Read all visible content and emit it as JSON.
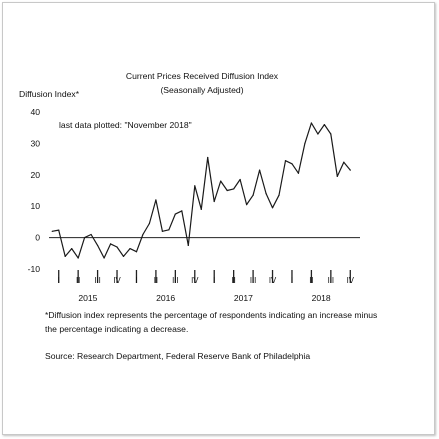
{
  "chart_data": {
    "type": "line",
    "title": "Current Prices Received Diffusion Index",
    "subtitle": "(Seasonally Adjusted)",
    "ylabel": "Diffusion Index*",
    "annotation": "last data plotted: \"November 2018\"",
    "ylim": [
      -10,
      40
    ],
    "yticks": [
      -10,
      0,
      10,
      20,
      30,
      40
    ],
    "grid": false,
    "x_start": "2015-01",
    "quarter_labels": [
      "I",
      "II",
      "III",
      "IV",
      "I",
      "II",
      "III",
      "IV",
      "I",
      "II",
      "III",
      "IV",
      "I",
      "II",
      "III",
      "IV"
    ],
    "year_labels": [
      "2015",
      "2016",
      "2017",
      "2018"
    ],
    "series": [
      {
        "values": [
          2,
          2.4,
          -6,
          -3.5,
          -6.5,
          0,
          1,
          -2.5,
          -6.5,
          -2,
          -3,
          -6,
          -3.5,
          -4.5,
          1,
          4.5,
          12,
          2,
          2.5,
          7.5,
          8.5,
          -2.5,
          16.5,
          9,
          25.5,
          11.5,
          18,
          15,
          15.5,
          18.5,
          10.5,
          13.5,
          21.5,
          14,
          9.5,
          13.5,
          24.5,
          23.5,
          20.5,
          30,
          36.5,
          33,
          36,
          33,
          19.5,
          24,
          21.5
        ],
        "color": "#1a1a1a"
      }
    ]
  },
  "footnote": "*Diffusion index represents the percentage of respondents indicating an increase minus the percentage indicating a decrease.",
  "source": "Source: Research Department, Federal Reserve Bank of Philadelphia"
}
